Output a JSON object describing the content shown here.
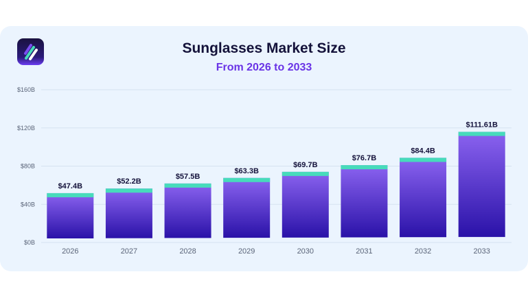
{
  "chart_data": {
    "type": "bar",
    "title": "Sunglasses Market Size",
    "subtitle": "From 2026 to 2033",
    "categories": [
      "2026",
      "2027",
      "2028",
      "2029",
      "2030",
      "2031",
      "2032",
      "2033"
    ],
    "values": [
      47.4,
      52.2,
      57.5,
      63.3,
      69.7,
      76.7,
      84.4,
      111.61
    ],
    "data_labels": [
      "$47.4B",
      "$52.2B",
      "$57.5B",
      "$63.3B",
      "$69.7B",
      "$76.7B",
      "$84.4B",
      "$111.61B"
    ],
    "yticks": [
      0,
      40,
      80,
      120,
      160
    ],
    "ytick_labels": [
      "$0B",
      "$40B",
      "$80B",
      "$120B",
      "$160B"
    ],
    "ylim": [
      0,
      160
    ],
    "grid": true,
    "colors": {
      "bar_top": "#8b63f0",
      "bar_bottom": "#2a12a8",
      "cap": "#47dbbb",
      "label": "#14123a",
      "accent": "#6a34e6"
    }
  }
}
